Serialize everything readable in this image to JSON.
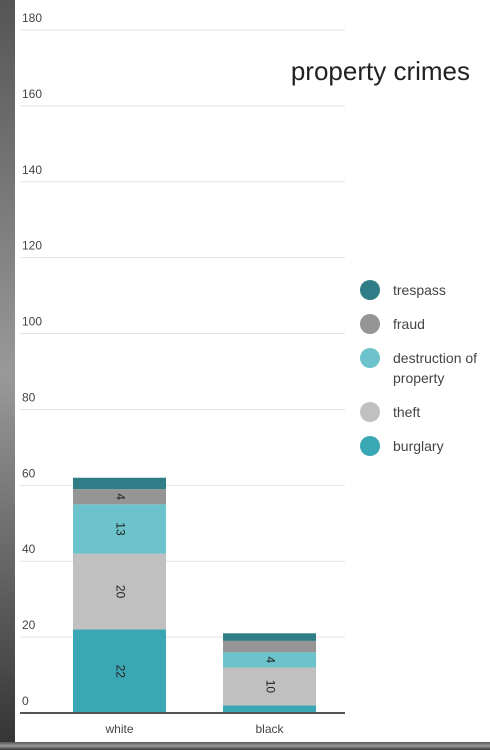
{
  "chart_data": {
    "type": "stacked_bar",
    "title": "property crimes",
    "categories": [
      "white",
      "black"
    ],
    "series": [
      {
        "name": "burglary",
        "color": "#3aa7b4",
        "values": [
          22,
          2
        ],
        "value_labels": [
          "22",
          null
        ]
      },
      {
        "name": "theft",
        "color": "#c0c0c0",
        "values": [
          20,
          10
        ],
        "value_labels": [
          "20",
          "10"
        ]
      },
      {
        "name": "destruction of property",
        "color": "#6cc3cc",
        "values": [
          13,
          4
        ],
        "value_labels": [
          "13",
          "4"
        ]
      },
      {
        "name": "fraud",
        "color": "#959595",
        "values": [
          4,
          3
        ],
        "value_labels": [
          "4",
          null
        ]
      },
      {
        "name": "trespass",
        "color": "#2e7d87",
        "values": [
          3,
          2
        ],
        "value_labels": [
          null,
          null
        ]
      }
    ],
    "ylim": [
      0,
      180
    ],
    "yticks": [
      0,
      20,
      40,
      60,
      80,
      100,
      120,
      140,
      160,
      180
    ],
    "grid": true
  }
}
